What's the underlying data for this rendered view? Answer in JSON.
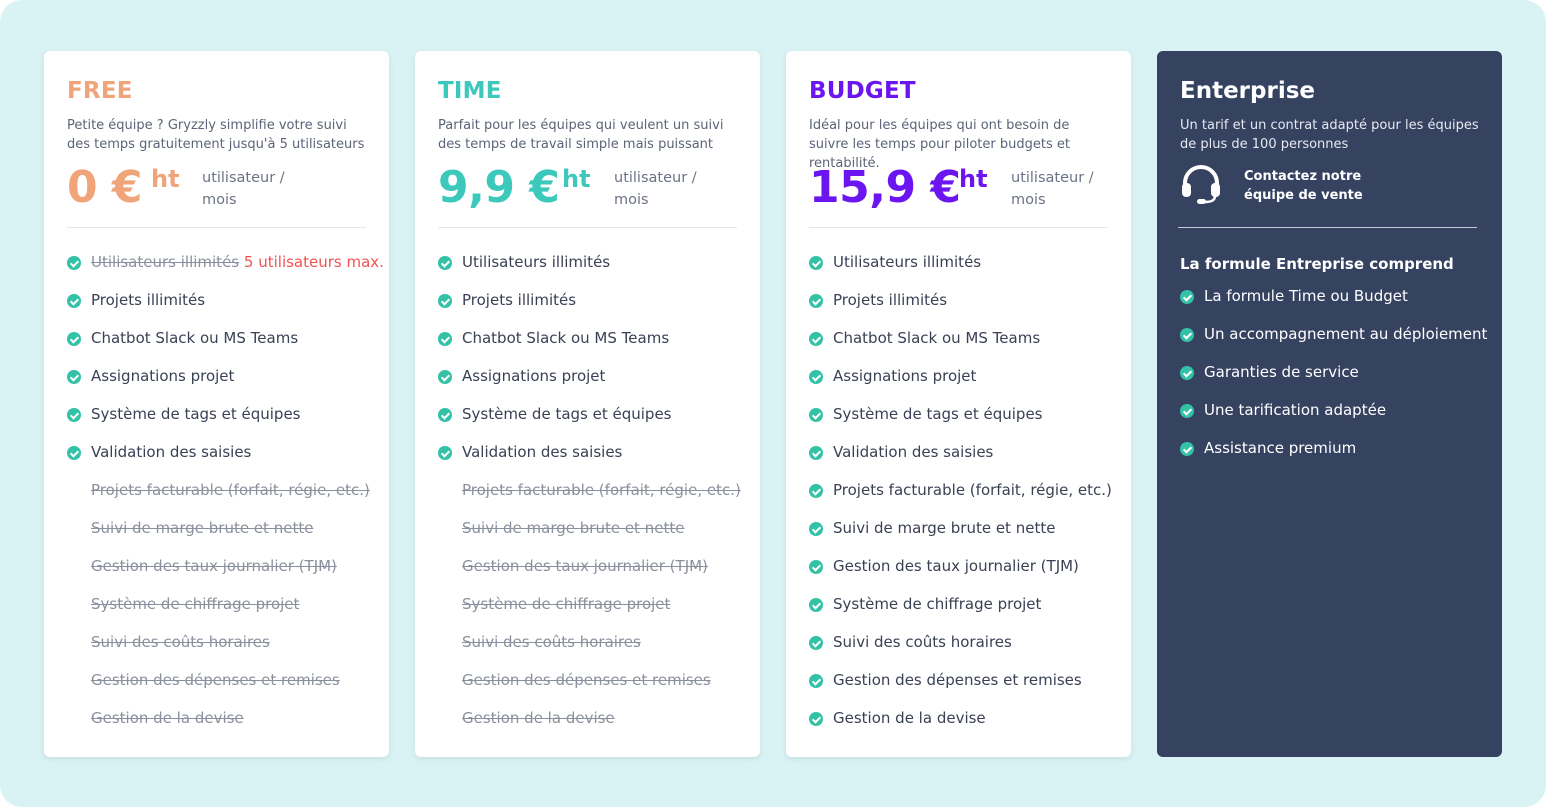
{
  "colors": {
    "background": "#d9f3f4",
    "free": "#f0a47a",
    "time": "#3cc9bb",
    "budget": "#6b16f0",
    "enterprise_bg": "#354260",
    "check": "#34c2a7",
    "limit_note": "#f05252"
  },
  "plans": [
    {
      "name": "FREE",
      "description": "Petite équipe ? Gryzzly simplifie votre suivi des temps gratuitement jusqu'à 5 utilisateurs",
      "price": "0 €",
      "price_suffix": "ht",
      "price_unit": "utilisateur / mois",
      "first_feature_struck": "Utilisateurs illimités",
      "first_feature_note": "5 utilisateurs max.",
      "features": [
        {
          "label": "Projets illimités",
          "included": true
        },
        {
          "label": "Chatbot Slack ou MS Teams",
          "included": true
        },
        {
          "label": "Assignations projet",
          "included": true
        },
        {
          "label": "Système de tags et équipes",
          "included": true
        },
        {
          "label": "Validation des saisies",
          "included": true
        },
        {
          "label": "Projets facturable (forfait, régie, etc.)",
          "included": false
        },
        {
          "label": "Suivi de marge brute et nette",
          "included": false
        },
        {
          "label": "Gestion des taux journalier (TJM)",
          "included": false
        },
        {
          "label": "Système de chiffrage projet",
          "included": false
        },
        {
          "label": "Suivi des coûts horaires",
          "included": false
        },
        {
          "label": "Gestion des dépenses et remises",
          "included": false
        },
        {
          "label": "Gestion de la devise",
          "included": false
        }
      ]
    },
    {
      "name": "TIME",
      "description": "Parfait pour les équipes qui veulent un suivi des temps de travail simple mais puissant",
      "price": "9,9 €",
      "price_suffix": "ht",
      "price_unit": "utilisateur / mois",
      "features": [
        {
          "label": "Utilisateurs illimités",
          "included": true
        },
        {
          "label": "Projets illimités",
          "included": true
        },
        {
          "label": "Chatbot Slack ou MS Teams",
          "included": true
        },
        {
          "label": "Assignations projet",
          "included": true
        },
        {
          "label": "Système de tags et équipes",
          "included": true
        },
        {
          "label": "Validation des saisies",
          "included": true
        },
        {
          "label": "Projets facturable (forfait, régie, etc.)",
          "included": false
        },
        {
          "label": "Suivi de marge brute et nette",
          "included": false
        },
        {
          "label": "Gestion des taux journalier (TJM)",
          "included": false
        },
        {
          "label": "Système de chiffrage projet",
          "included": false
        },
        {
          "label": "Suivi des coûts horaires",
          "included": false
        },
        {
          "label": "Gestion des dépenses et remises",
          "included": false
        },
        {
          "label": "Gestion de la devise",
          "included": false
        }
      ]
    },
    {
      "name": "BUDGET",
      "description": "Idéal pour les équipes qui ont besoin de suivre les temps pour piloter budgets et rentabilité.",
      "price": "15,9 €",
      "price_suffix": "ht",
      "price_unit": "utilisateur / mois",
      "features": [
        {
          "label": "Utilisateurs illimités",
          "included": true
        },
        {
          "label": "Projets illimités",
          "included": true
        },
        {
          "label": "Chatbot Slack ou MS Teams",
          "included": true
        },
        {
          "label": "Assignations projet",
          "included": true
        },
        {
          "label": "Système de tags et équipes",
          "included": true
        },
        {
          "label": "Validation des saisies",
          "included": true
        },
        {
          "label": "Projets facturable (forfait, régie, etc.)",
          "included": true
        },
        {
          "label": "Suivi de marge brute et nette",
          "included": true
        },
        {
          "label": "Gestion des taux journalier (TJM)",
          "included": true
        },
        {
          "label": "Système de chiffrage projet",
          "included": true
        },
        {
          "label": "Suivi des coûts horaires",
          "included": true
        },
        {
          "label": "Gestion des dépenses et remises",
          "included": true
        },
        {
          "label": "Gestion de la devise",
          "included": true
        }
      ]
    }
  ],
  "enterprise": {
    "name": "Enterprise",
    "description": "Un tarif et un contrat adapté pour les équipes de plus de 100 personnes",
    "contact_icon": "headset-icon",
    "contact_line1": "Contactez notre",
    "contact_line2": "équipe de vente",
    "subtitle": "La formule Entreprise comprend",
    "features": [
      "La formule Time ou Budget",
      "Un accompagnement au déploiement",
      "Garanties de service",
      "Une tarification adaptée",
      "Assistance premium"
    ]
  }
}
